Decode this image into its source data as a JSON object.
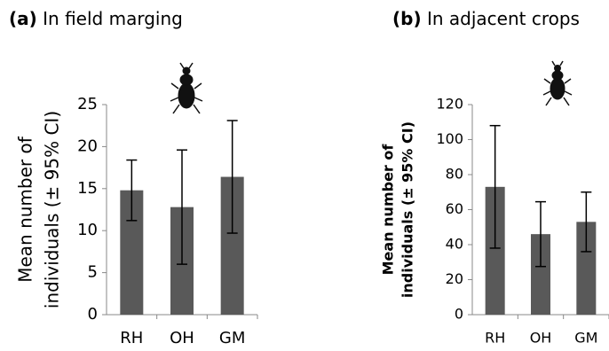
{
  "chart_data": [
    {
      "type": "bar",
      "panel": "(a)",
      "title": "In field marging",
      "ylabel": [
        "Mean number of",
        "individuals (± 95% CI)"
      ],
      "categories": [
        "RH",
        "OH",
        "GM"
      ],
      "values": [
        14.8,
        12.8,
        16.4
      ],
      "errors": [
        3.6,
        6.8,
        6.7
      ],
      "color": "#595959",
      "ylim": [
        0,
        25
      ],
      "yticks": [
        0,
        5,
        10,
        15,
        20,
        25
      ],
      "grid": false
    },
    {
      "type": "bar",
      "panel": "(b)",
      "title": "In adjacent crops",
      "ylabel": [
        "Mean number of",
        "individuals (± 95% CI)"
      ],
      "categories": [
        "RH",
        "OH",
        "GM"
      ],
      "values": [
        73,
        46,
        53
      ],
      "errors": [
        35,
        18.5,
        17
      ],
      "color": "#595959",
      "ylim": [
        0,
        120
      ],
      "yticks": [
        0,
        20,
        40,
        60,
        80,
        100,
        120
      ],
      "grid": false
    }
  ]
}
